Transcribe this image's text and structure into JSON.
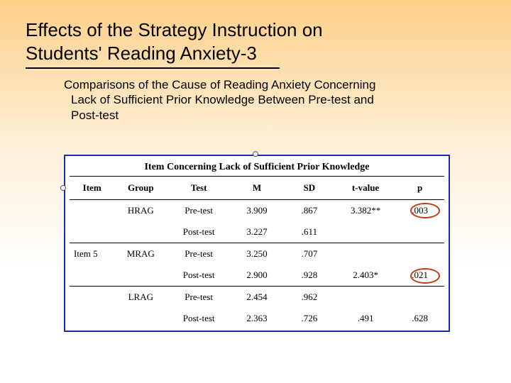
{
  "title_line1": "Effects of the Strategy Instruction on",
  "title_line2": "Students' Reading Anxiety-3",
  "subtitle_line1": "Comparisons of the Cause of Reading Anxiety Concerning",
  "subtitle_line2": "Lack of Sufficient Prior Knowledge Between Pre-test and",
  "subtitle_line3": "Post-test",
  "table": {
    "caption": "Item Concerning Lack of Sufficient Prior Knowledge",
    "columns": [
      "Item",
      "Group",
      "Test",
      "M",
      "SD",
      "t-value",
      "p"
    ],
    "item_label": "Item 5",
    "rows": [
      {
        "group": "HRAG",
        "test": "Pre-test",
        "m": "3.909",
        "sd": ".867",
        "t": "3.382**",
        "p": ".003"
      },
      {
        "group": "",
        "test": "Post-test",
        "m": "3.227",
        "sd": ".611",
        "t": "",
        "p": ""
      },
      {
        "group": "MRAG",
        "test": "Pre-test",
        "m": "3.250",
        "sd": ".707",
        "t": "",
        "p": ""
      },
      {
        "group": "",
        "test": "Post-test",
        "m": "2.900",
        "sd": ".928",
        "t": "2.403*",
        "p": ".021"
      },
      {
        "group": "LRAG",
        "test": "Pre-test",
        "m": "2.454",
        "sd": ".962",
        "t": "",
        "p": ""
      },
      {
        "group": "",
        "test": "Post-test",
        "m": "2.363",
        "sd": ".726",
        "t": ".491",
        "p": ".628"
      }
    ],
    "colors": {
      "border": "#1a2eaa",
      "circle": "#c43a0f",
      "text": "#000000",
      "bg": "#ffffff"
    }
  }
}
